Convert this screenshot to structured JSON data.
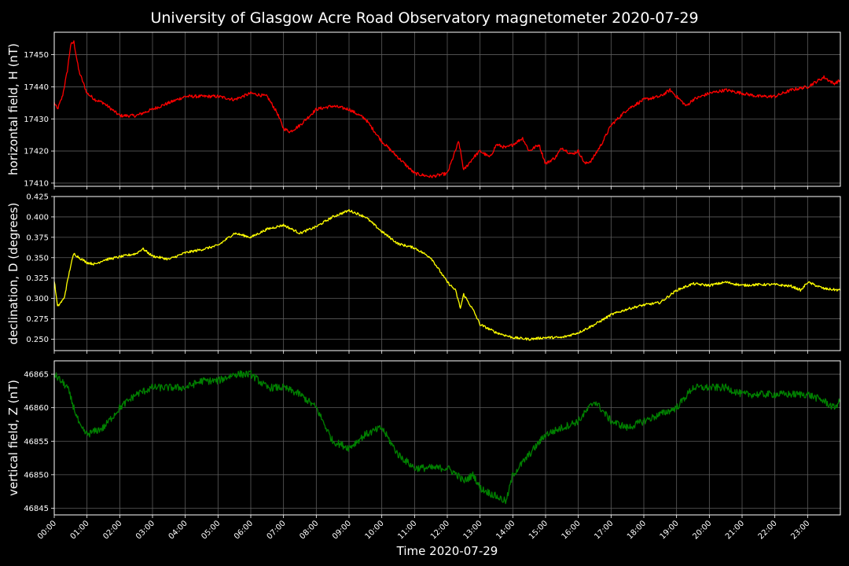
{
  "chart_data": {
    "type": "line",
    "title": "University of Glasgow Acre Road Observatory magnetometer 2020-07-29",
    "xlabel": "Time 2020-07-29",
    "x_ticks": [
      "00:00",
      "01:00",
      "02:00",
      "03:00",
      "04:00",
      "05:00",
      "06:00",
      "07:00",
      "08:00",
      "09:00",
      "10:00",
      "11:00",
      "12:00",
      "13:00",
      "14:00",
      "15:00",
      "16:00",
      "17:00",
      "18:00",
      "19:00",
      "20:00",
      "21:00",
      "22:00",
      "23:00"
    ],
    "xlim_hours": [
      0,
      24
    ],
    "grid": true,
    "panels": [
      {
        "ylabel": "horizontal field, H (nT)",
        "color": "#ff0000",
        "ylim": [
          17409,
          17457
        ],
        "yticks": [
          17410,
          17420,
          17430,
          17440,
          17450
        ],
        "noise": 0.5,
        "points": [
          [
            0,
            17435
          ],
          [
            0.1,
            17433
          ],
          [
            0.25,
            17437
          ],
          [
            0.4,
            17445
          ],
          [
            0.5,
            17453
          ],
          [
            0.6,
            17454
          ],
          [
            0.75,
            17445
          ],
          [
            1.0,
            17438
          ],
          [
            1.25,
            17436
          ],
          [
            1.5,
            17435
          ],
          [
            1.75,
            17433
          ],
          [
            2.0,
            17431
          ],
          [
            2.5,
            17431
          ],
          [
            3.0,
            17433
          ],
          [
            3.5,
            17435
          ],
          [
            4.0,
            17437
          ],
          [
            4.5,
            17437
          ],
          [
            5.0,
            17437
          ],
          [
            5.5,
            17436
          ],
          [
            6.0,
            17438
          ],
          [
            6.5,
            17437
          ],
          [
            6.8,
            17432
          ],
          [
            7.0,
            17427
          ],
          [
            7.2,
            17426
          ],
          [
            7.5,
            17428
          ],
          [
            8.0,
            17433
          ],
          [
            8.5,
            17434
          ],
          [
            9.0,
            17433
          ],
          [
            9.5,
            17430
          ],
          [
            10.0,
            17423
          ],
          [
            10.5,
            17418
          ],
          [
            11.0,
            17413
          ],
          [
            11.5,
            17412
          ],
          [
            12.0,
            17413
          ],
          [
            12.35,
            17423
          ],
          [
            12.5,
            17414
          ],
          [
            12.8,
            17418
          ],
          [
            13.0,
            17420
          ],
          [
            13.3,
            17418
          ],
          [
            13.5,
            17422
          ],
          [
            13.8,
            17421
          ],
          [
            14.0,
            17422
          ],
          [
            14.3,
            17424
          ],
          [
            14.5,
            17420
          ],
          [
            14.8,
            17422
          ],
          [
            15.0,
            17416
          ],
          [
            15.3,
            17418
          ],
          [
            15.5,
            17421
          ],
          [
            15.8,
            17419
          ],
          [
            16.0,
            17420
          ],
          [
            16.2,
            17416
          ],
          [
            16.4,
            17417
          ],
          [
            16.7,
            17422
          ],
          [
            17.0,
            17428
          ],
          [
            17.5,
            17433
          ],
          [
            18.0,
            17436
          ],
          [
            18.5,
            17437
          ],
          [
            18.8,
            17439
          ],
          [
            19.0,
            17437
          ],
          [
            19.3,
            17434
          ],
          [
            19.5,
            17436
          ],
          [
            20.0,
            17438
          ],
          [
            20.5,
            17439
          ],
          [
            21.0,
            17438
          ],
          [
            21.5,
            17437
          ],
          [
            22.0,
            17437
          ],
          [
            22.5,
            17439
          ],
          [
            23.0,
            17440
          ],
          [
            23.5,
            17443
          ],
          [
            23.8,
            17441
          ],
          [
            24.0,
            17442
          ]
        ]
      },
      {
        "ylabel": "declination, D (degrees)",
        "color": "#ffff00",
        "ylim": [
          0.236,
          0.425
        ],
        "yticks": [
          0.25,
          0.275,
          0.3,
          0.325,
          0.35,
          0.375,
          0.4,
          0.425
        ],
        "noise": 0.0015,
        "points": [
          [
            0,
            0.322
          ],
          [
            0.1,
            0.29
          ],
          [
            0.3,
            0.3
          ],
          [
            0.5,
            0.34
          ],
          [
            0.6,
            0.355
          ],
          [
            0.8,
            0.349
          ],
          [
            1.0,
            0.344
          ],
          [
            1.25,
            0.342
          ],
          [
            1.5,
            0.347
          ],
          [
            2.0,
            0.351
          ],
          [
            2.5,
            0.355
          ],
          [
            2.7,
            0.361
          ],
          [
            3.0,
            0.352
          ],
          [
            3.5,
            0.348
          ],
          [
            4.0,
            0.356
          ],
          [
            4.5,
            0.36
          ],
          [
            5.0,
            0.365
          ],
          [
            5.5,
            0.38
          ],
          [
            6.0,
            0.375
          ],
          [
            6.5,
            0.385
          ],
          [
            7.0,
            0.39
          ],
          [
            7.5,
            0.38
          ],
          [
            8.0,
            0.388
          ],
          [
            8.5,
            0.4
          ],
          [
            9.0,
            0.408
          ],
          [
            9.5,
            0.4
          ],
          [
            10.0,
            0.382
          ],
          [
            10.5,
            0.367
          ],
          [
            11.0,
            0.362
          ],
          [
            11.5,
            0.35
          ],
          [
            12.0,
            0.32
          ],
          [
            12.25,
            0.31
          ],
          [
            12.4,
            0.288
          ],
          [
            12.5,
            0.305
          ],
          [
            12.8,
            0.285
          ],
          [
            13.0,
            0.268
          ],
          [
            13.5,
            0.258
          ],
          [
            14.0,
            0.252
          ],
          [
            14.5,
            0.25
          ],
          [
            15.0,
            0.252
          ],
          [
            15.5,
            0.252
          ],
          [
            16.0,
            0.258
          ],
          [
            16.5,
            0.268
          ],
          [
            17.0,
            0.28
          ],
          [
            17.5,
            0.287
          ],
          [
            18.0,
            0.292
          ],
          [
            18.5,
            0.295
          ],
          [
            19.0,
            0.31
          ],
          [
            19.5,
            0.318
          ],
          [
            20.0,
            0.316
          ],
          [
            20.5,
            0.32
          ],
          [
            21.0,
            0.316
          ],
          [
            21.5,
            0.317
          ],
          [
            22.0,
            0.317
          ],
          [
            22.5,
            0.315
          ],
          [
            22.8,
            0.31
          ],
          [
            23.0,
            0.32
          ],
          [
            23.5,
            0.312
          ],
          [
            24.0,
            0.31
          ]
        ]
      },
      {
        "ylabel": "vertical field, Z (nT)",
        "color": "#008000",
        "ylim": [
          46844,
          46867
        ],
        "yticks": [
          46845,
          46850,
          46855,
          46860,
          46865
        ],
        "noise": 0.55,
        "points": [
          [
            0,
            46865
          ],
          [
            0.4,
            46863
          ],
          [
            0.6,
            46860
          ],
          [
            0.8,
            46857
          ],
          [
            1.0,
            46856
          ],
          [
            1.5,
            46857
          ],
          [
            2.0,
            46860
          ],
          [
            2.5,
            46862
          ],
          [
            3.0,
            46863
          ],
          [
            3.5,
            46863
          ],
          [
            4.0,
            46863
          ],
          [
            4.5,
            46864
          ],
          [
            5.0,
            46864
          ],
          [
            5.5,
            46865
          ],
          [
            6.0,
            46865
          ],
          [
            6.5,
            46863
          ],
          [
            7.0,
            46863
          ],
          [
            7.5,
            46862
          ],
          [
            8.0,
            46860
          ],
          [
            8.5,
            46855
          ],
          [
            9.0,
            46854
          ],
          [
            9.5,
            46856
          ],
          [
            10.0,
            46857
          ],
          [
            10.5,
            46853
          ],
          [
            11.0,
            46851
          ],
          [
            11.5,
            46851
          ],
          [
            12.0,
            46851
          ],
          [
            12.3,
            46850
          ],
          [
            12.5,
            46849
          ],
          [
            12.8,
            46850
          ],
          [
            13.0,
            46848
          ],
          [
            13.4,
            46847
          ],
          [
            13.8,
            46846
          ],
          [
            14.0,
            46850
          ],
          [
            14.5,
            46853
          ],
          [
            15.0,
            46856
          ],
          [
            15.5,
            46857
          ],
          [
            16.0,
            46858
          ],
          [
            16.5,
            46861
          ],
          [
            17.0,
            46858
          ],
          [
            17.5,
            46857
          ],
          [
            18.0,
            46858
          ],
          [
            18.5,
            46859
          ],
          [
            19.0,
            46860
          ],
          [
            19.5,
            46863
          ],
          [
            20.0,
            46863
          ],
          [
            20.5,
            46863
          ],
          [
            21.0,
            46862
          ],
          [
            21.5,
            46862
          ],
          [
            22.0,
            46862
          ],
          [
            22.5,
            46862
          ],
          [
            23.0,
            46862
          ],
          [
            23.5,
            46861
          ],
          [
            23.8,
            46860
          ],
          [
            24.0,
            46861
          ]
        ]
      }
    ]
  }
}
